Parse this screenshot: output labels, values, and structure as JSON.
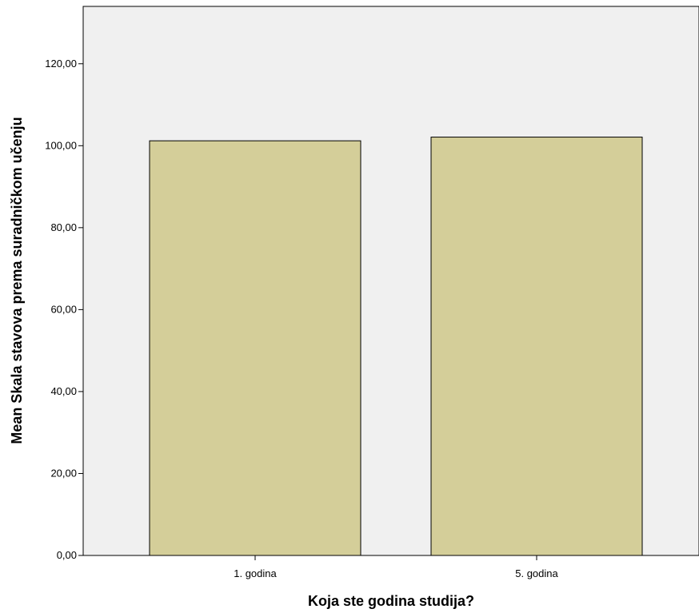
{
  "chart_data": {
    "type": "bar",
    "title": "",
    "xlabel": "Koja ste godina studija?",
    "ylabel": "Mean Skala stavova prema suradničkom učenju",
    "categories": [
      "1. godina",
      "5. godina"
    ],
    "values": [
      101.2,
      102.1
    ],
    "ylim": [
      0,
      134
    ],
    "yticks": [
      "0,00",
      "20,00",
      "40,00",
      "60,00",
      "80,00",
      "100,00",
      "120,00"
    ],
    "grid": false,
    "legend": "none",
    "colors": {
      "plot_background": "#f0f0f0",
      "bar_fill": "#d4ce99",
      "bar_stroke": "#000000",
      "axis": "#000000"
    }
  }
}
